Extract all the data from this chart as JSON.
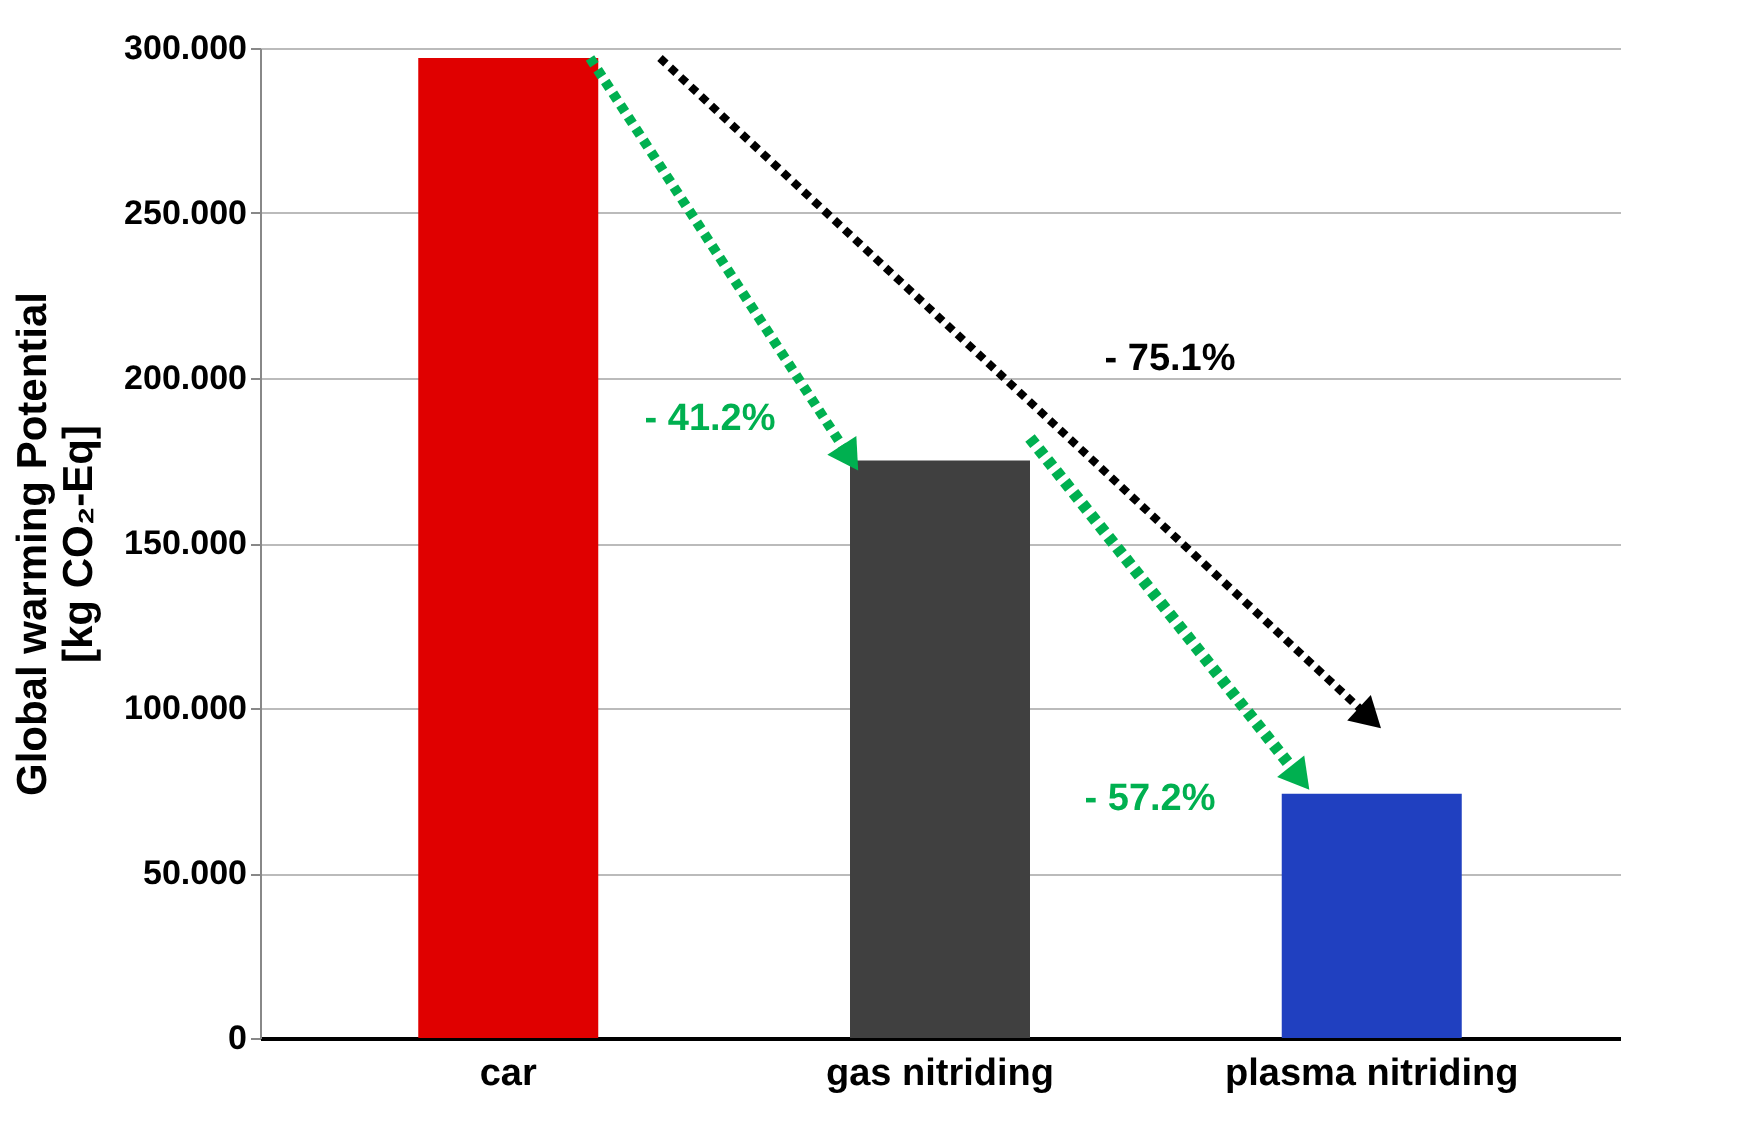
{
  "chart_data": {
    "type": "bar",
    "ylabel": "Global warming Potential\n[kg CO₂-Eq]",
    "categories": [
      "car",
      "gas nitriding",
      "plasma nitriding"
    ],
    "values": [
      297,
      175,
      74
    ],
    "colors": [
      "#e00000",
      "#404040",
      "#2040c0"
    ],
    "ylim": [
      0,
      300
    ],
    "yticks": [
      {
        "value": 0,
        "label": "0"
      },
      {
        "value": 50,
        "label": "50.000"
      },
      {
        "value": 100,
        "label": "100.000"
      },
      {
        "value": 150,
        "label": "150.000"
      },
      {
        "value": 200,
        "label": "200.000"
      },
      {
        "value": 250,
        "label": "250.000"
      },
      {
        "value": 300,
        "label": "300.000"
      }
    ],
    "grid": true,
    "annotations": [
      "- 41.2%",
      "- 75.1%",
      "- 57.2%"
    ]
  }
}
